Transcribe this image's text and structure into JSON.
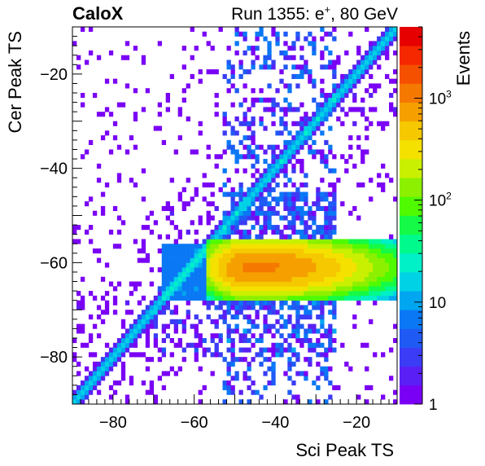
{
  "chart_data": {
    "type": "heatmap",
    "experiment_label": "CaloX",
    "run_label": "Run 1355: e",
    "run_label_sup": "+",
    "run_label_tail": ", 80 GeV",
    "xlabel": "Sci Peak TS",
    "ylabel": "Cer Peak TS",
    "xlim": [
      -90,
      -10
    ],
    "ylim": [
      -90,
      -10
    ],
    "x_ticks": [
      -80,
      -60,
      -40,
      -20
    ],
    "x_tick_labels": [
      "−80",
      "−60",
      "−40",
      "−20"
    ],
    "y_ticks": [
      -80,
      -60,
      -40,
      -20
    ],
    "y_tick_labels": [
      "−80",
      "−60",
      "−40",
      "−20"
    ],
    "z_label": "Events",
    "z_scale": "log",
    "z_range": [
      1,
      5000
    ],
    "z_tick_labels": [
      {
        "value": 1,
        "base": "1",
        "exp": ""
      },
      {
        "value": 10,
        "base": "10",
        "exp": ""
      },
      {
        "value": 100,
        "base": "10",
        "exp": "2"
      },
      {
        "value": 1000,
        "base": "10",
        "exp": "3"
      }
    ],
    "bin_width": 1,
    "features": {
      "diagonal_band": {
        "slope": 1,
        "offset": 0,
        "approx_counts": 10
      },
      "core_cluster": {
        "x_range": [
          -57,
          -10
        ],
        "y_range": [
          -68,
          -55
        ],
        "peak_x": -46,
        "peak_y": -61,
        "peak_counts": 1000
      },
      "vertical_band": {
        "x_range": [
          -53,
          -25
        ],
        "y_range": [
          -90,
          -10
        ],
        "approx_counts": 3
      },
      "background": {
        "approx_counts": 1
      }
    },
    "palette": [
      "#7a00f5",
      "#5a1ff5",
      "#3b3cf5",
      "#1f5af5",
      "#0a78f5",
      "#00a6f0",
      "#00d2e6",
      "#00f0c8",
      "#00fa8c",
      "#14fa46",
      "#50fa00",
      "#8cf000",
      "#c8f000",
      "#f5e100",
      "#f5c800",
      "#f5a000",
      "#f57800",
      "#f55000",
      "#f52800",
      "#e60000"
    ]
  }
}
